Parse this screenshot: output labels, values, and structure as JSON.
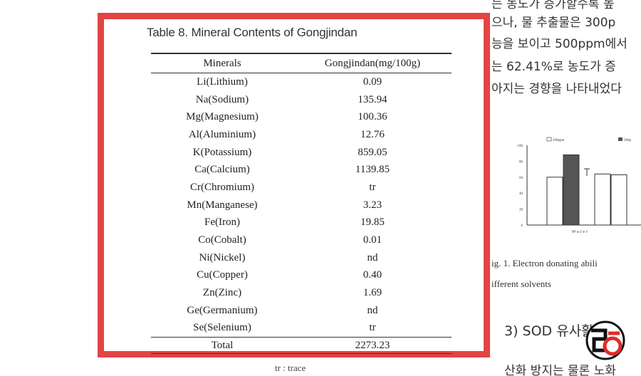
{
  "table": {
    "title": "Table 8. Mineral Contents of Gongjindan",
    "headers": [
      "Minerals",
      "Gongjindan(mg/100g)"
    ],
    "rows": [
      [
        "Li(Lithium)",
        "0.09"
      ],
      [
        "Na(Sodium)",
        "135.94"
      ],
      [
        "Mg(Magnesium)",
        "100.36"
      ],
      [
        "Al(Aluminium)",
        "12.76"
      ],
      [
        "K(Potassium)",
        "859.05"
      ],
      [
        "Ca(Calcium)",
        "1139.85"
      ],
      [
        "Cr(Chromium)",
        "tr"
      ],
      [
        "Mn(Manganese)",
        "3.23"
      ],
      [
        "Fe(Iron)",
        "19.85"
      ],
      [
        "Co(Cobalt)",
        "0.01"
      ],
      [
        "Ni(Nickel)",
        "nd"
      ],
      [
        "Cu(Copper)",
        "0.40"
      ],
      [
        "Zn(Zinc)",
        "1.69"
      ],
      [
        "Ge(Germanium)",
        "nd"
      ],
      [
        "Se(Selenium)",
        "tr"
      ]
    ],
    "total": [
      "Total",
      "2273.23"
    ],
    "footnote": "tr : trace"
  },
  "right_text": {
    "lines": [
      "는 농도가 증가할수록 높",
      "으나, 물 추출물은 300p",
      "능을 보이고 500ppm에서",
      "는 62.41%로 농도가 증",
      "아지는 경향을 나타내었다"
    ],
    "figure_caption_1": "ig. 1. Electron donating abili",
    "figure_caption_2": "ifferent solvents",
    "section_heading": "3) SOD 유사활성",
    "bottom_line": "산화 방지는 물론 노화",
    "legend_1": "100ppm",
    "legend_2": "300p",
    "x_label": "Water"
  },
  "mini_chart": {
    "type": "bar",
    "y_ticks": [
      "100",
      "80",
      "60",
      "40",
      "20",
      "0"
    ],
    "bar_values": [
      60,
      88,
      64,
      63
    ],
    "error_bar_value": 66,
    "colors": {
      "light": "#ffffff",
      "dark": "#555555"
    }
  },
  "colors": {
    "frame": "#e24444",
    "logo_red": "#e02a2a"
  }
}
